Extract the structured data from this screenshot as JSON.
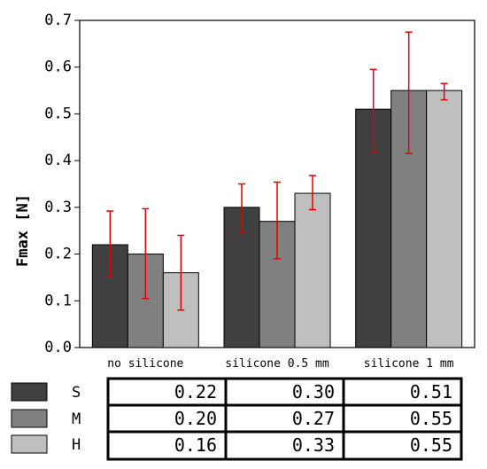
{
  "chart_data": {
    "type": "bar",
    "title": "",
    "xlabel": "",
    "ylabel": "Fmax [N]",
    "ylim": [
      0,
      0.7
    ],
    "yticks": [
      "0.0",
      "0.1",
      "0.2",
      "0.3",
      "0.4",
      "0.5",
      "0.6",
      "0.7"
    ],
    "grid": false,
    "categories": [
      "no silicone",
      "silicone 0.5 mm",
      "silicone 1 mm"
    ],
    "series": [
      {
        "name": "S",
        "color": "#404040",
        "values": [
          0.22,
          0.3,
          0.51
        ],
        "error_low": [
          0.152,
          0.244,
          0.418
        ],
        "error_high": [
          0.292,
          0.35,
          0.595
        ]
      },
      {
        "name": "M",
        "color": "#808080",
        "values": [
          0.2,
          0.27,
          0.55
        ],
        "error_low": [
          0.105,
          0.19,
          0.415
        ],
        "error_high": [
          0.297,
          0.354,
          0.675
        ]
      },
      {
        "name": "H",
        "color": "#bfbfbf",
        "values": [
          0.16,
          0.33,
          0.55
        ],
        "error_low": [
          0.08,
          0.295,
          0.53
        ],
        "error_high": [
          0.24,
          0.368,
          0.565
        ]
      }
    ],
    "error_bar_color": "#e00000",
    "legend_position": "bottom-left table",
    "table": {
      "rows": [
        [
          "0.22",
          "0.30",
          "0.51"
        ],
        [
          "0.20",
          "0.27",
          "0.55"
        ],
        [
          "0.16",
          "0.33",
          "0.55"
        ]
      ]
    }
  }
}
